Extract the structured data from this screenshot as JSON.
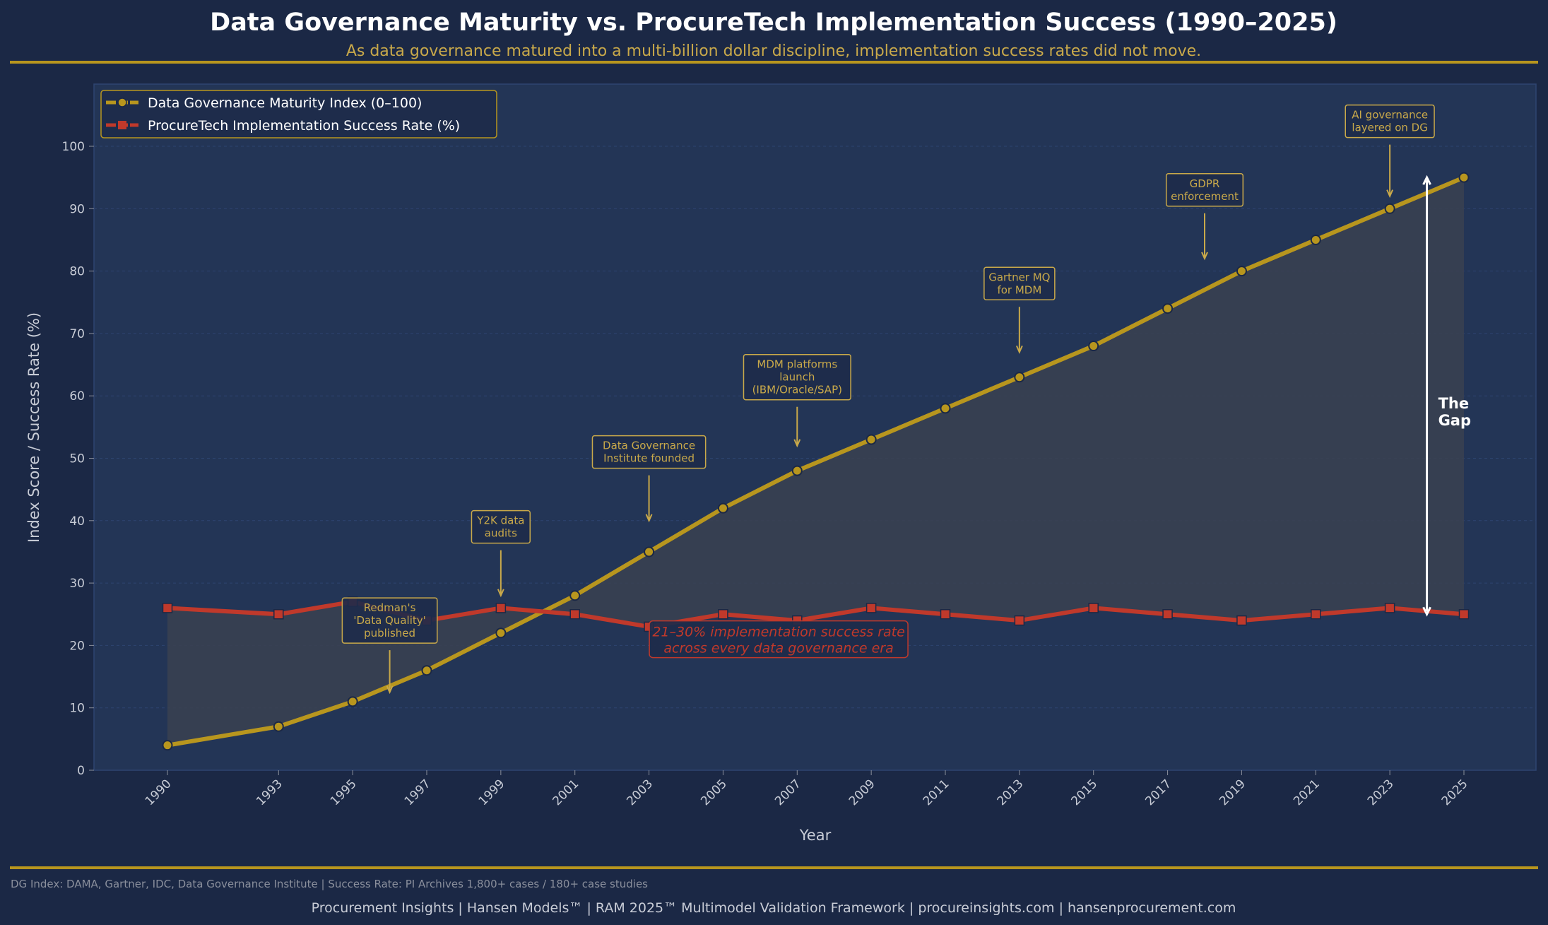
{
  "header": {
    "title": "Data Governance Maturity vs. ProcureTech Implementation Success  (1990–2025)",
    "subtitle": "As data governance matured into a multi-billion dollar discipline, implementation success rates did not move."
  },
  "footer": {
    "source": "DG Index: DAMA, Gartner, IDC, Data Governance Institute | Success Rate: PI Archives 1,800+ cases / 180+ case studies",
    "credits": "Procurement Insights  |  Hansen Models™  |  RAM 2025™ Multimodel Validation Framework  |  procureinsights.com  |  hansenprocurement.com"
  },
  "colors": {
    "background": "#1b2845",
    "plot_background": "#233556",
    "gold": "#b8961e",
    "red": "#c0392b",
    "gap_fill": "#3a4150",
    "annotation_text": "#c9a94a"
  },
  "chart_data": {
    "type": "line",
    "xlabel": "Year",
    "ylabel": "Index Score / Success Rate (%)",
    "ylim": [
      0,
      110
    ],
    "xlim": [
      1987.5,
      2027
    ],
    "yticks": [
      0,
      10,
      20,
      30,
      40,
      50,
      60,
      70,
      80,
      90,
      100
    ],
    "x": [
      1990,
      1993,
      1995,
      1997,
      1999,
      2001,
      2003,
      2005,
      2007,
      2009,
      2011,
      2013,
      2015,
      2017,
      2019,
      2021,
      2023,
      2025
    ],
    "grid": true,
    "legend_placement": "top-left",
    "series": [
      {
        "name": "Data Governance Maturity Index (0–100)",
        "marker": "circle",
        "color": "#b8961e",
        "values": [
          4,
          7,
          11,
          16,
          22,
          28,
          35,
          42,
          48,
          53,
          58,
          63,
          68,
          74,
          80,
          85,
          90,
          95
        ]
      },
      {
        "name": "ProcureTech Implementation Success Rate (%)",
        "marker": "square",
        "color": "#c0392b",
        "values": [
          26,
          25,
          27,
          24,
          26,
          25,
          23,
          25,
          24,
          26,
          25,
          24,
          26,
          25,
          24,
          25,
          26,
          25
        ]
      }
    ],
    "annotations": [
      {
        "text": [
          "Redman's",
          "'Data Quality'",
          "published"
        ],
        "year": 1996,
        "text_y": 24,
        "point_y": 12.5
      },
      {
        "text": [
          "Y2K data",
          "audits"
        ],
        "year": 1999,
        "text_y": 39,
        "point_y": 28
      },
      {
        "text": [
          "Data Governance",
          "Institute founded"
        ],
        "year": 2003,
        "text_y": 51,
        "point_y": 40
      },
      {
        "text": [
          "MDM platforms",
          "launch",
          "(IBM/Oracle/SAP)"
        ],
        "year": 2007,
        "text_y": 63,
        "point_y": 52
      },
      {
        "text": [
          "Gartner MQ",
          "for MDM"
        ],
        "year": 2013,
        "text_y": 78,
        "point_y": 67
      },
      {
        "text": [
          "GDPR",
          "enforcement"
        ],
        "year": 2018,
        "text_y": 93,
        "point_y": 82
      },
      {
        "text": [
          "AI governance",
          "layered on DG"
        ],
        "year": 2023,
        "text_y": 104,
        "point_y": 92
      }
    ],
    "gap": {
      "label": [
        "The",
        "Gap"
      ],
      "year": 2024,
      "from": 25,
      "to": 95
    },
    "callout": {
      "text": [
        "21–30% implementation success rate",
        "across every data governance era"
      ],
      "year": 2006.5,
      "y": 21
    }
  }
}
